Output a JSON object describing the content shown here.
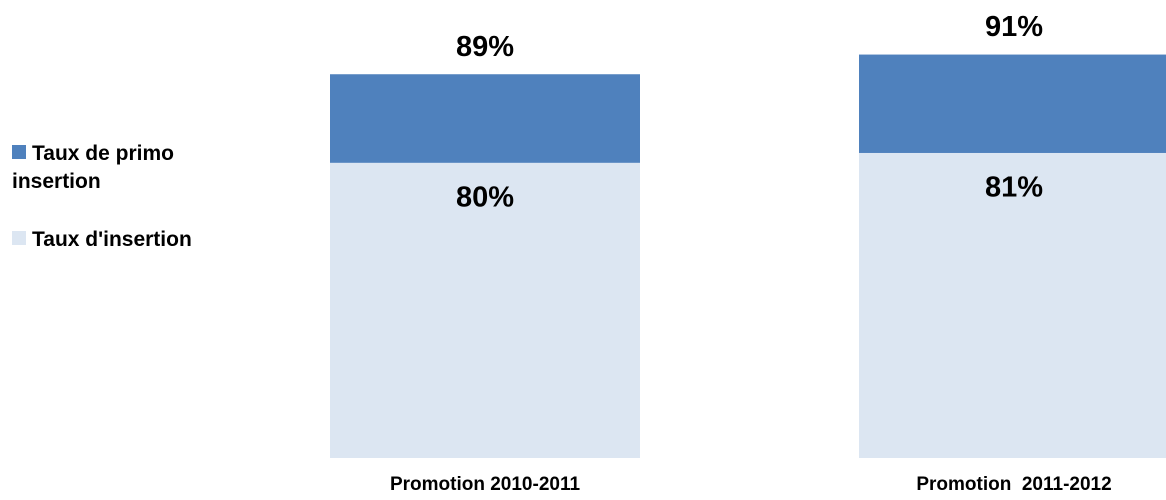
{
  "chart_data": {
    "type": "bar",
    "categories": [
      "Promotion 2010-2011",
      "Promotion  2011-2012"
    ],
    "series": [
      {
        "name": "Taux de primo insertion",
        "color": "#4f81bd",
        "values": [
          89,
          91
        ],
        "value_labels": [
          "89%",
          "91%"
        ]
      },
      {
        "name": "Taux d'insertion",
        "color": "#dce6f2",
        "values": [
          80,
          81
        ],
        "value_labels": [
          "80%",
          "81%"
        ]
      }
    ],
    "ylim": [
      50,
      100
    ],
    "legend": "left",
    "grid": false
  }
}
